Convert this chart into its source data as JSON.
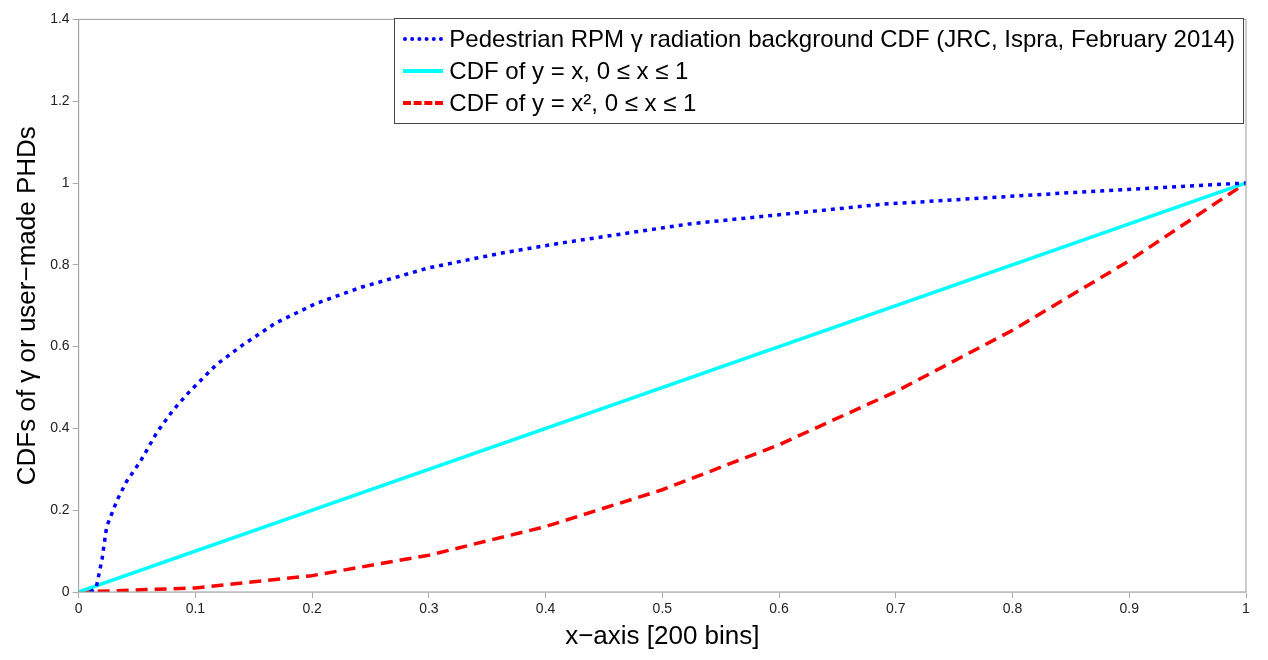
{
  "chart_data": {
    "type": "line",
    "xlabel": "x−axis [200 bins]",
    "ylabel": "CDFs of γ or user−made PHDs",
    "xlim": [
      0,
      1
    ],
    "ylim": [
      0,
      1.4
    ],
    "xticks": [
      0,
      0.1,
      0.2,
      0.3,
      0.4,
      0.5,
      0.6,
      0.7,
      0.8,
      0.9,
      1
    ],
    "yticks": [
      0,
      0.2,
      0.4,
      0.6,
      0.8,
      1,
      1.2,
      1.4
    ],
    "grid": false,
    "legend": "top right",
    "marker": "none",
    "series": [
      {
        "name": "Pedestrian RPM γ radiation background CDF (JRC, Ispra, February 2014)",
        "color": "#0000ff",
        "line_style": "dotted",
        "x": [
          0.01,
          0.015,
          0.02,
          0.024,
          0.033,
          0.041,
          0.053,
          0.067,
          0.081,
          0.095,
          0.118,
          0.14,
          0.169,
          0.203,
          0.242,
          0.299,
          0.361,
          0.415,
          0.523,
          0.688,
          0.853,
          1
        ],
        "values": [
          0,
          0.01,
          0.08,
          0.16,
          0.225,
          0.27,
          0.32,
          0.39,
          0.445,
          0.49,
          0.556,
          0.603,
          0.658,
          0.705,
          0.745,
          0.792,
          0.828,
          0.854,
          0.9,
          0.948,
          0.977,
          1
        ]
      },
      {
        "name": "CDF of y = x, 0 ≤ x ≤ 1",
        "color": "#00ffff",
        "line_style": "solid",
        "x": [
          0,
          1
        ],
        "values": [
          0,
          1
        ]
      },
      {
        "name": "CDF of y = x², 0 ≤ x ≤ 1",
        "color": "#ff0000",
        "line_style": "dashed",
        "x": [
          0,
          0.1,
          0.2,
          0.3,
          0.4,
          0.5,
          0.6,
          0.7,
          0.8,
          0.9,
          1
        ],
        "values": [
          0,
          0.01,
          0.04,
          0.09,
          0.16,
          0.25,
          0.36,
          0.49,
          0.64,
          0.81,
          1
        ]
      }
    ]
  }
}
